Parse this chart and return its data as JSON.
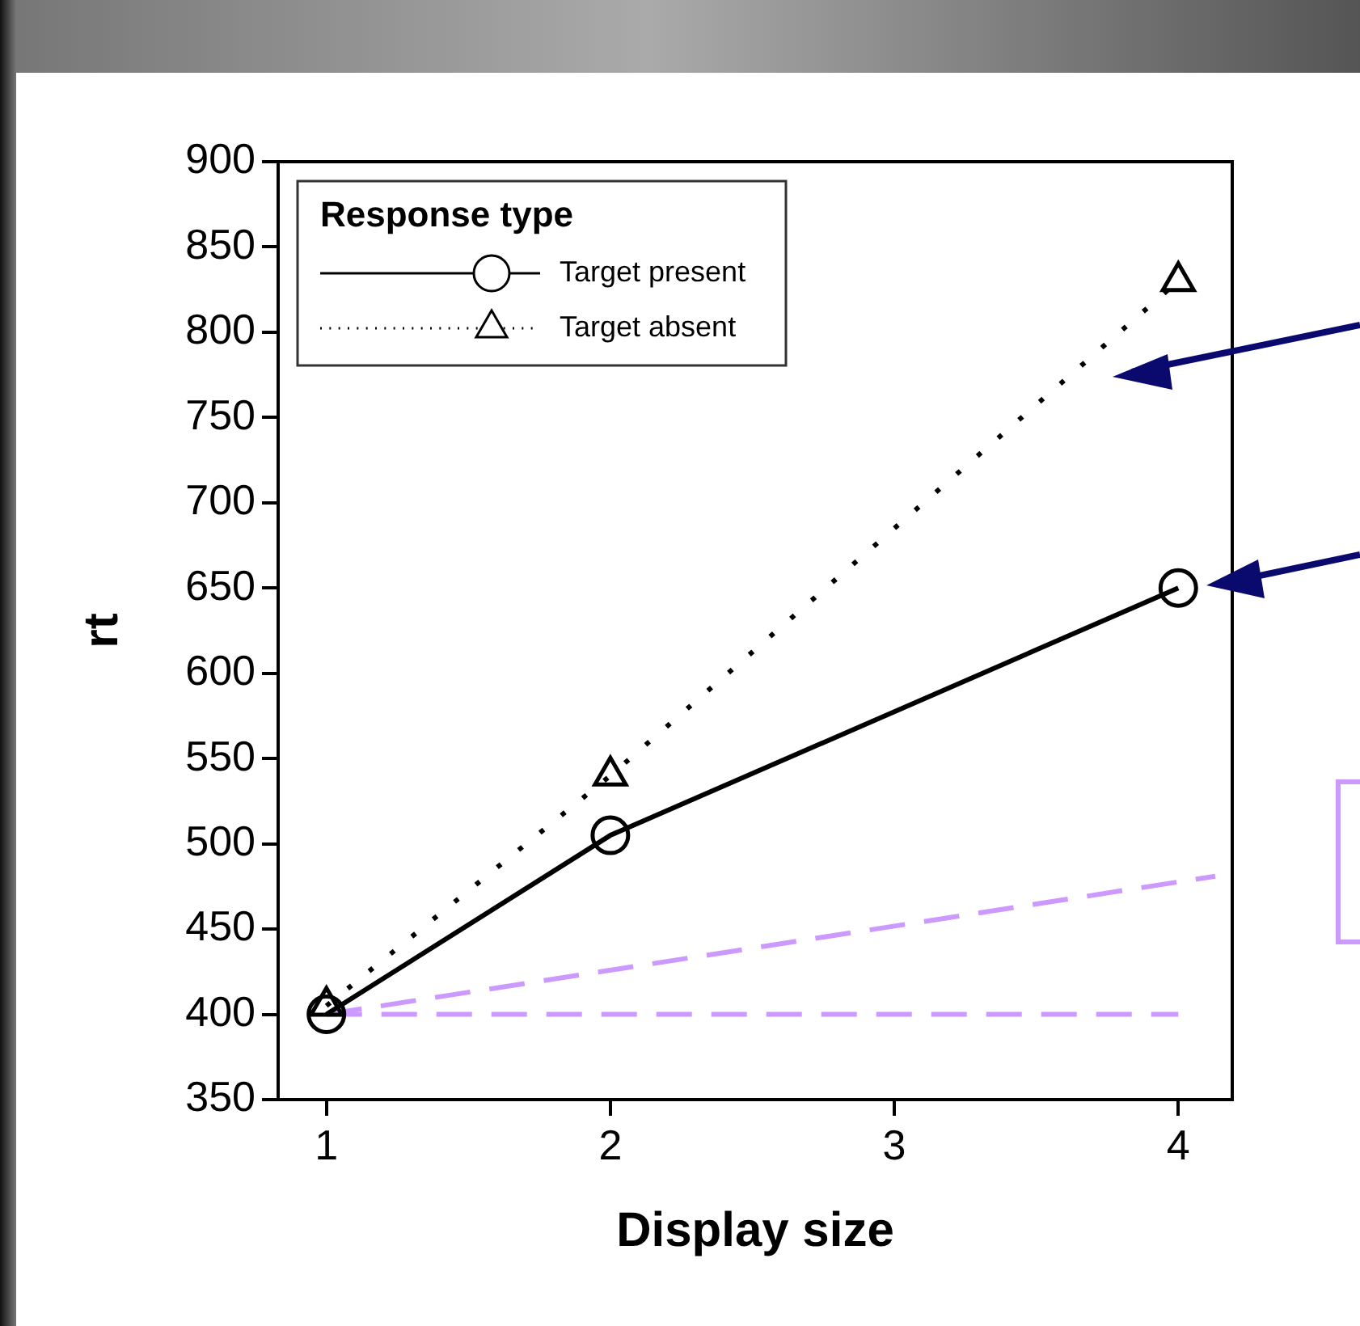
{
  "chart_data": {
    "type": "line",
    "xlabel": "Display size",
    "ylabel": "rt",
    "legend_title": "Response type",
    "xlim": [
      0.83,
      4.19
    ],
    "xticks": [
      1,
      2,
      3,
      4
    ],
    "ylim": [
      350,
      900
    ],
    "yticks": [
      350,
      400,
      450,
      500,
      550,
      600,
      650,
      700,
      750,
      800,
      850,
      900
    ],
    "grid": false,
    "legend": "top left",
    "series": [
      {
        "name": "Target present",
        "color": "#000000",
        "x": [
          1,
          2,
          4
        ],
        "values": [
          400,
          505,
          650
        ],
        "marker": "circle",
        "line_style": "solid"
      },
      {
        "name": "Target absent",
        "color": "#000000",
        "x": [
          1,
          2,
          4
        ],
        "values": [
          405,
          540,
          830
        ],
        "marker": "triangle",
        "line_style": "dotted"
      },
      {
        "color": "#cc99ff",
        "x": [
          1,
          4.13
        ],
        "values": [
          400,
          481
        ],
        "marker": "none",
        "line_style": "dashed"
      },
      {
        "color": "#cc99ff",
        "x": [
          1,
          4
        ],
        "values": [
          400,
          400
        ],
        "marker": "none",
        "line_style": "dashed"
      }
    ]
  }
}
